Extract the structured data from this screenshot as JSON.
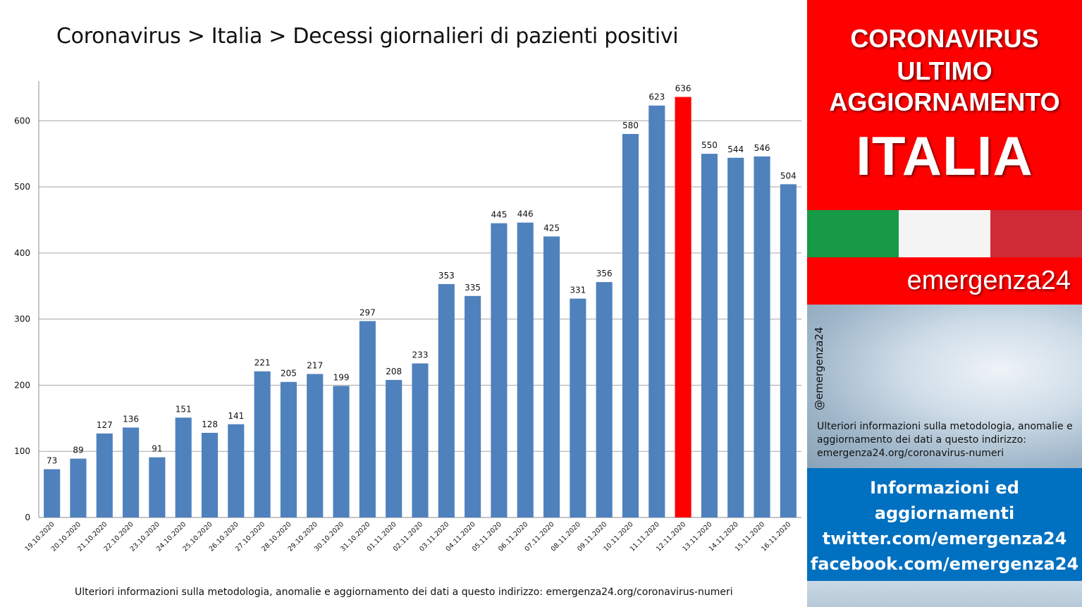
{
  "title": "Coronavirus > Italia > Decessi giornalieri di pazienti positivi",
  "footer_note": "Ulteriori informazioni sulla metodologia, anomalie e aggiornamento dei dati a questo indirizzo: emergenza24.org/coronavirus-numeri",
  "sidebar": {
    "headline_1": "CORONAVIRUS",
    "headline_2": "ULTIMO",
    "headline_3": "AGGIORNAMENTO",
    "headline_4": "ITALIA",
    "brand": "emergenza24",
    "handle": "@emergenza24",
    "note": "Ulteriori informazioni sulla metodologia, anomalie e aggiornamento dei dati a questo indirizzo: emergenza24.org/coronavirus-numeri",
    "info_lines": [
      "Informazioni ed",
      "aggiornamenti",
      "twitter.com/emergenza24",
      "facebook.com/emergenza24"
    ],
    "flag_colors": [
      "#169a45",
      "#f4f4f4",
      "#cf2b37"
    ]
  },
  "chart_data": {
    "type": "bar",
    "categories": [
      "19.10.2020",
      "20.10.2020",
      "21.10.2020",
      "22.10.2020",
      "23.10.2020",
      "24.10.2020",
      "25.10.2020",
      "26.10.2020",
      "27.10.2020",
      "28.10.2020",
      "29.10.2020",
      "30.10.2020",
      "31.10.2020",
      "01.11.2020",
      "02.11.2020",
      "03.11.2020",
      "04.11.2020",
      "05.11.2020",
      "06.11.2020",
      "07.11.2020",
      "08.11.2020",
      "09.11.2020",
      "10.11.2020",
      "11.11.2020",
      "12.11.2020",
      "13.11.2020",
      "14.11.2020",
      "15.11.2020",
      "16.11.2020"
    ],
    "values": [
      73,
      89,
      127,
      136,
      91,
      151,
      128,
      141,
      221,
      205,
      217,
      199,
      297,
      208,
      233,
      353,
      335,
      445,
      446,
      425,
      331,
      356,
      580,
      623,
      636,
      550,
      544,
      546,
      504
    ],
    "highlight_index": 24,
    "bar_color": "#4f81bd",
    "highlight_color": "#ff0000",
    "ylim": [
      0,
      660
    ],
    "yticks": [
      0,
      100,
      200,
      300,
      400,
      500,
      600
    ],
    "grid": true,
    "title": "Coronavirus > Italia > Decessi giornalieri di pazienti positivi"
  }
}
